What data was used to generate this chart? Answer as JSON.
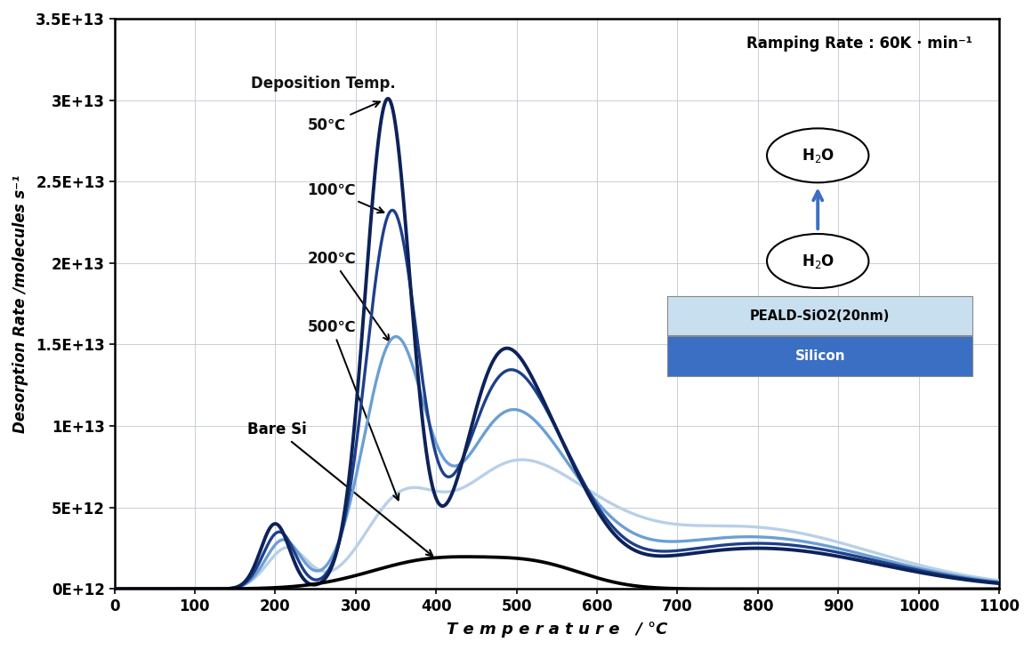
{
  "xlim": [
    0,
    1100
  ],
  "ylim": [
    0,
    35000000000000.0
  ],
  "yticks": [
    0,
    5000000000000.0,
    10000000000000.0,
    15000000000000.0,
    20000000000000.0,
    25000000000000.0,
    30000000000000.0,
    35000000000000.0
  ],
  "ytick_labels": [
    "0E+12",
    "5E+12",
    "1E+13",
    "1.5E+13",
    "2E+13",
    "2.5E+13",
    "3E+13",
    "3.5E+13"
  ],
  "xticks": [
    0,
    100,
    200,
    300,
    400,
    500,
    600,
    700,
    800,
    900,
    1000,
    1100
  ],
  "xlabel": "T e m p e r a t u r e   / °C",
  "ylabel": "Desorption Rate /molecules s⁻¹",
  "ramping_label": "Ramping Rate : 60K · min⁻¹",
  "deposition_label": "Deposition Temp.",
  "bare_si_label": "Bare Si",
  "colors": {
    "50C": "#0d2259",
    "100C": "#1e3f8a",
    "200C": "#6b9fd4",
    "500C": "#b8d0e8",
    "bare_si": "#000000"
  },
  "background": "#ffffff",
  "grid_color": "#c0c8d0"
}
